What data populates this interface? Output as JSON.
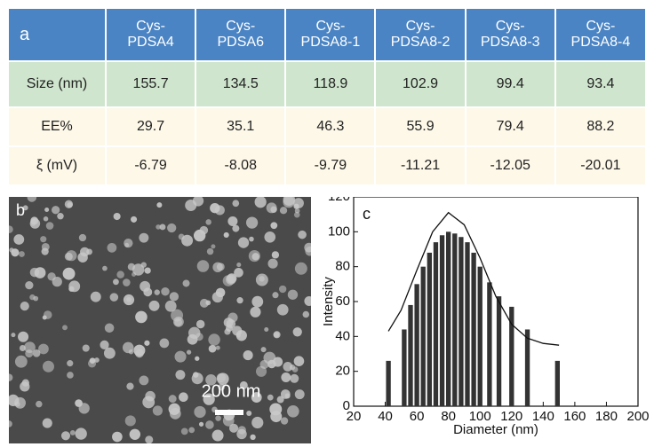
{
  "table": {
    "label": "a",
    "header": [
      "Cys-\nPDSA4",
      "Cys-\nPDSA6",
      "Cys-\nPDSA8-1",
      "Cys-\nPDSA8-2",
      "Cys-\nPDSA8-3",
      "Cys-\nPDSA8-4"
    ],
    "rows": [
      [
        "Size (nm)",
        155.7,
        134.5,
        118.9,
        102.9,
        99.4,
        93.4
      ],
      [
        "EE%",
        29.7,
        35.1,
        46.3,
        55.9,
        79.4,
        88.2
      ],
      [
        "ξ (mV)",
        -6.79,
        -8.08,
        -9.79,
        -11.21,
        -12.05,
        -20.01
      ]
    ]
  },
  "image": {
    "label": "b",
    "scale_bar": "200 nm"
  },
  "chart_data": {
    "type": "bar",
    "label": "c",
    "x_label": "Diameter (nm)",
    "y_label": "Intensity",
    "x": [
      42,
      52,
      56,
      60,
      64,
      68,
      72,
      76,
      80,
      84,
      88,
      92,
      96,
      100,
      106,
      112,
      120,
      130,
      149
    ],
    "values": [
      26,
      44,
      58,
      70,
      80,
      88,
      94,
      98,
      100,
      99,
      97,
      94,
      88,
      80,
      71,
      63,
      57,
      44,
      26
    ],
    "color": "#333333",
    "fit": {
      "x": [
        42,
        50,
        60,
        70,
        80,
        90,
        100,
        110,
        120,
        130,
        140,
        150
      ],
      "values": [
        43,
        55,
        78,
        100,
        111,
        104,
        85,
        63,
        47,
        39,
        36,
        35
      ]
    },
    "xlim": [
      20,
      200
    ],
    "xticks": [
      20,
      40,
      60,
      80,
      100,
      120,
      140,
      160,
      180,
      200
    ],
    "ylim": [
      0,
      120
    ],
    "yticks": [
      0,
      20,
      40,
      60,
      80,
      100,
      120
    ]
  }
}
